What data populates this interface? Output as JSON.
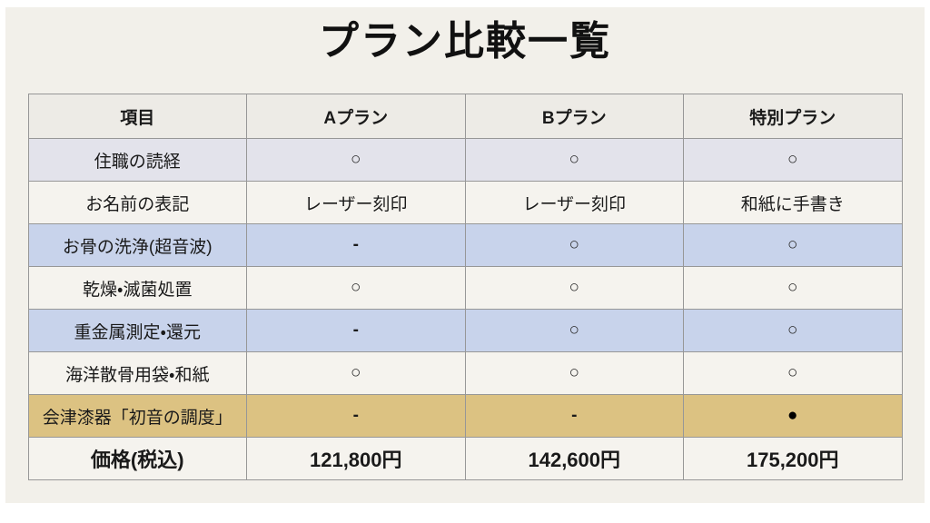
{
  "title": "プラン比較一覧",
  "table": {
    "headers": [
      "項目",
      "Aプラン",
      "Bプラン",
      "特別プラン"
    ],
    "rows": [
      {
        "style": "lavender",
        "cells": [
          "住職の読経",
          "○",
          "○",
          "○"
        ]
      },
      {
        "style": "plain",
        "cells": [
          "お名前の表記",
          "レーザー刻印",
          "レーザー刻印",
          "和紙に手書き"
        ]
      },
      {
        "style": "blue",
        "cells": [
          "お骨の洗浄(超音波)",
          "-",
          "○",
          "○"
        ]
      },
      {
        "style": "plain",
        "cells": [
          "乾燥・滅菌処置",
          "○",
          "○",
          "○"
        ]
      },
      {
        "style": "blue",
        "cells": [
          "重金属測定・還元",
          "-",
          "○",
          "○"
        ]
      },
      {
        "style": "plain",
        "cells": [
          "海洋散骨用袋・和紙",
          "○",
          "○",
          "○"
        ]
      },
      {
        "style": "gold",
        "cells": [
          "会津漆器「初音の調度」",
          "-",
          "-",
          "●"
        ]
      },
      {
        "style": "price",
        "cells": [
          "価格(税込)",
          "121,800円",
          "142,600円",
          "175,200円"
        ]
      }
    ]
  },
  "colors": {
    "slide_bg": "#f2f0ea",
    "header_bg": "#edebe6",
    "row_plain": "#f5f3ee",
    "row_lavender": "#e3e3eb",
    "row_blue": "#c8d3eb",
    "row_gold": "#dcc282",
    "border": "#979797",
    "text": "#1a1a1a"
  }
}
